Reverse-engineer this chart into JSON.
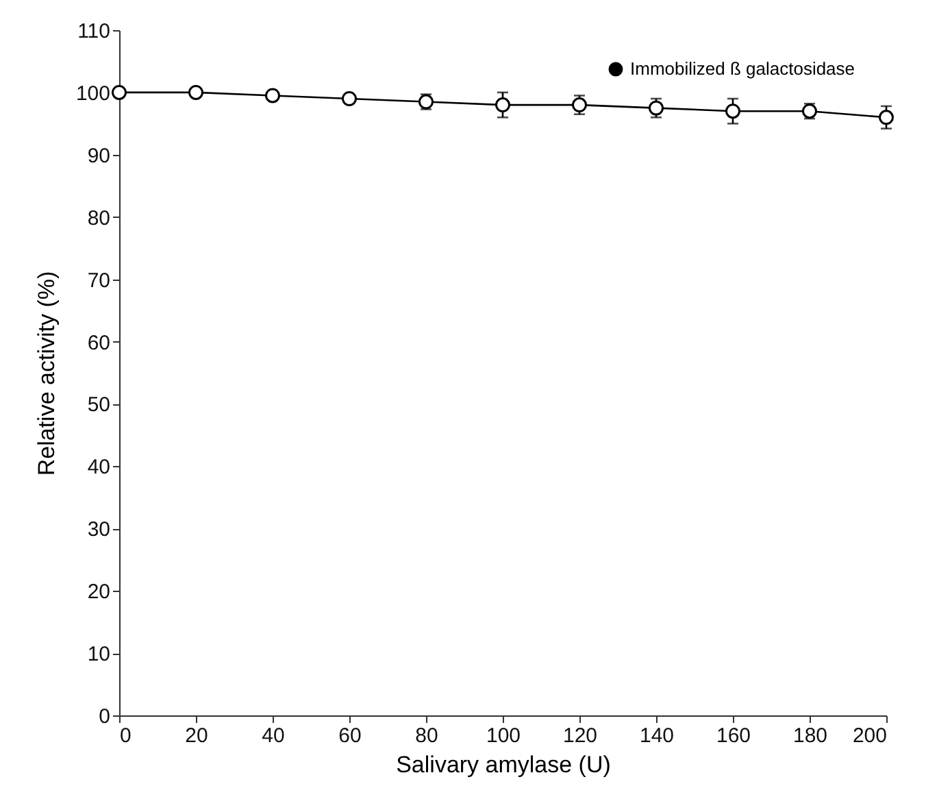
{
  "chart_data": {
    "type": "line",
    "xlabel": "Salivary amylase (U)",
    "ylabel": "Relative activity (%)",
    "x": [
      0,
      20,
      40,
      60,
      80,
      100,
      120,
      140,
      160,
      180,
      200
    ],
    "series": [
      {
        "name": "Immobilized ß galactosidase",
        "color": "#000000",
        "values": [
          100,
          100,
          99.5,
          99,
          98.5,
          98,
          98,
          97.5,
          97,
          97,
          96
        ],
        "errors": [
          null,
          null,
          null,
          0.7,
          1.2,
          2,
          1.5,
          1.5,
          2,
          1.2,
          1.8
        ]
      }
    ],
    "xlim": [
      0,
      200
    ],
    "xticks": [
      0,
      20,
      40,
      60,
      80,
      100,
      120,
      140,
      160,
      180,
      200
    ],
    "ylim": [
      0,
      110
    ],
    "yticks": [
      0,
      10,
      20,
      30,
      40,
      50,
      60,
      70,
      80,
      90,
      100,
      110
    ],
    "marker": "circle",
    "line_style": "solid",
    "legend": "top right",
    "grid": false
  }
}
